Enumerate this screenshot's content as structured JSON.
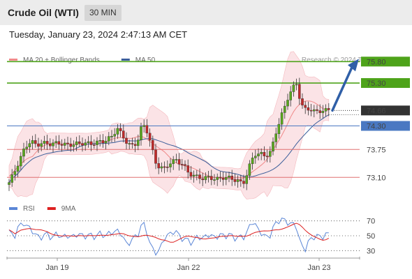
{
  "header": {
    "title": "Crude Oil (WTI)",
    "timeframe": "30 MIN"
  },
  "datetime": "Tuesday, January 23, 2024 2:47:13 AM CET",
  "credit": "Research © 2024 Trading Central",
  "colors": {
    "green": "#4ea31a",
    "blue": "#4a78c2",
    "red": "#e07070",
    "dark": "#333333",
    "band": "#fadadd",
    "rsi": "#5b86d6",
    "rsi_ma": "#dd2020"
  },
  "chart_data": [
    {
      "type": "line",
      "legend": [
        {
          "label": "MA 20 + Bollinger Bands",
          "color": "#f08a8a"
        },
        {
          "label": "MA 50",
          "color": "#3b5e9a"
        }
      ],
      "levels": [
        {
          "label": "75.80",
          "value": 75.8,
          "kind": "resistance",
          "style": "tag"
        },
        {
          "label": "75.30",
          "value": 75.3,
          "kind": "resistance",
          "style": "tag"
        },
        {
          "label": "74.66",
          "value": 74.66,
          "kind": "last",
          "style": "tag"
        },
        {
          "label": "74.30",
          "value": 74.3,
          "kind": "pivot",
          "style": "tag"
        },
        {
          "label": "73.75",
          "value": 73.75,
          "kind": "support",
          "style": "text"
        },
        {
          "label": "73.10",
          "value": 73.1,
          "kind": "support",
          "style": "text"
        }
      ],
      "ylim": [
        72.6,
        76.0
      ],
      "xticks": [
        "Jan 19",
        "Jan 22",
        "Jan 23"
      ],
      "projection": {
        "from": 74.66,
        "to": 75.8
      }
    },
    {
      "type": "line",
      "legend": [
        {
          "label": "RSI",
          "color": "#5b86d6"
        },
        {
          "label": "9MA",
          "color": "#dd2020"
        }
      ],
      "yticks": [
        "70",
        "50",
        "30"
      ],
      "ylim": [
        20,
        80
      ]
    }
  ]
}
